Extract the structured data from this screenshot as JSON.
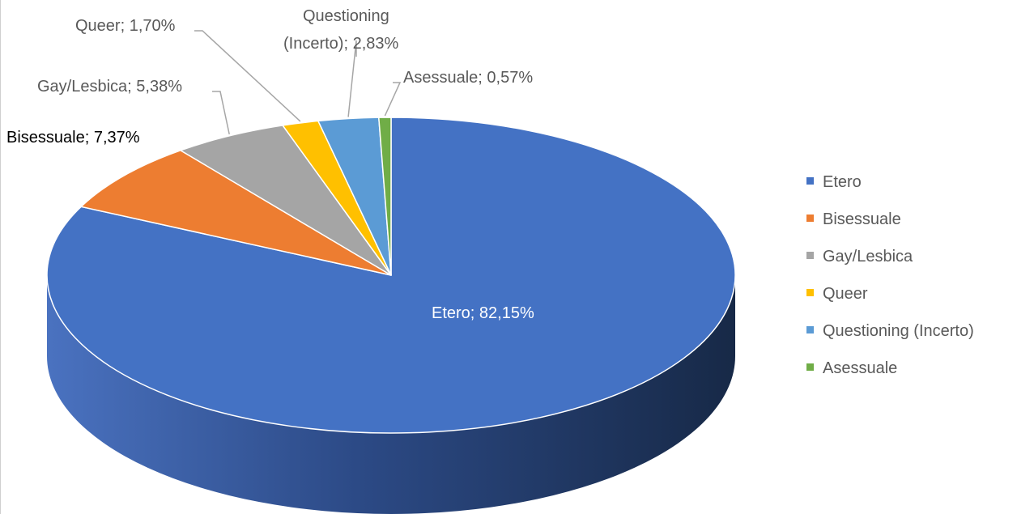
{
  "chart_data": {
    "type": "pie",
    "style": "3d",
    "slices": [
      {
        "name": "Etero",
        "value": 82.15,
        "label": "Etero; 82,15%",
        "color": "#4472C4"
      },
      {
        "name": "Bisessuale",
        "value": 7.37,
        "label": "Bisessuale; 7,37%",
        "color": "#ED7D31"
      },
      {
        "name": "Gay/Lesbica",
        "value": 5.38,
        "label": "Gay/Lesbica; 5,38%",
        "color": "#A5A5A5"
      },
      {
        "name": "Queer",
        "value": 1.7,
        "label": "Queer; 1,70%",
        "color": "#FFC000"
      },
      {
        "name": "Questioning (Incerto)",
        "value": 2.83,
        "label_lines": [
          "Questioning",
          "(Incerto); 2,83%"
        ],
        "color": "#5B9BD5"
      },
      {
        "name": "Asessuale",
        "value": 0.57,
        "label": "Asessuale; 0,57%",
        "color": "#70AD47"
      }
    ],
    "legend": {
      "placement": "right",
      "entries": [
        "Etero",
        "Bisessuale",
        "Gay/Lesbica",
        "Queer",
        "Questioning (Incerto)",
        "Asessuale"
      ]
    }
  }
}
